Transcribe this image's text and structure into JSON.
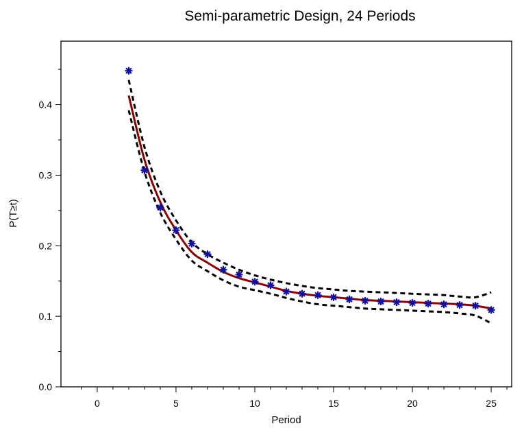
{
  "chart_data": {
    "type": "line",
    "title": "Semi-parametric Design, 24 Periods",
    "xlabel": "Period",
    "ylabel": "P(T≥t)",
    "xlim": [
      -2.3,
      26.3
    ],
    "ylim": [
      0.0,
      0.49
    ],
    "xticks": [
      0,
      5,
      10,
      15,
      20,
      25
    ],
    "xminor": [
      -1,
      1,
      2,
      3,
      4,
      6,
      7,
      8,
      9,
      11,
      12,
      13,
      14,
      16,
      17,
      18,
      19,
      21,
      22,
      23,
      24,
      26
    ],
    "yticks": [
      0.0,
      0.1,
      0.2,
      0.3,
      0.4
    ],
    "yminor": [
      0.05,
      0.15,
      0.25,
      0.35,
      0.45
    ],
    "xtick_labels": [
      "0",
      "5",
      "10",
      "15",
      "20",
      "25"
    ],
    "ytick_labels": [
      "0.0",
      "0.1",
      "0.2",
      "0.3",
      "0.4"
    ],
    "grid": false,
    "series": [
      {
        "role": "observed",
        "x": [
          2,
          3,
          4,
          5,
          6,
          7,
          8,
          9,
          10,
          11,
          12,
          13,
          14,
          15,
          16,
          17,
          18,
          19,
          20,
          21,
          22,
          23,
          24,
          25
        ],
        "y": [
          0.448,
          0.307,
          0.254,
          0.222,
          0.203,
          0.188,
          0.166,
          0.159,
          0.149,
          0.144,
          0.135,
          0.132,
          0.13,
          0.127,
          0.124,
          0.122,
          0.121,
          0.12,
          0.119,
          0.118,
          0.117,
          0.116,
          0.115,
          0.109
        ]
      },
      {
        "role": "fitted",
        "x": [
          2,
          3,
          4,
          5,
          6,
          7,
          8,
          9,
          10,
          11,
          12,
          13,
          14,
          15,
          16,
          17,
          18,
          19,
          20,
          21,
          22,
          23,
          24,
          25
        ],
        "y": [
          0.413,
          0.322,
          0.262,
          0.222,
          0.191,
          0.176,
          0.163,
          0.154,
          0.148,
          0.142,
          0.136,
          0.132,
          0.129,
          0.127,
          0.125,
          0.123,
          0.122,
          0.121,
          0.12,
          0.119,
          0.118,
          0.117,
          0.115,
          0.111
        ]
      },
      {
        "role": "upper-bound",
        "x": [
          2,
          3,
          4,
          5,
          6,
          7,
          8,
          9,
          10,
          11,
          12,
          13,
          14,
          15,
          16,
          17,
          18,
          19,
          20,
          21,
          22,
          23,
          24,
          25
        ],
        "y": [
          0.435,
          0.34,
          0.277,
          0.236,
          0.205,
          0.188,
          0.176,
          0.166,
          0.158,
          0.152,
          0.147,
          0.143,
          0.14,
          0.138,
          0.136,
          0.135,
          0.134,
          0.133,
          0.132,
          0.131,
          0.13,
          0.128,
          0.127,
          0.134
        ]
      },
      {
        "role": "lower-bound",
        "x": [
          2,
          3,
          4,
          5,
          6,
          7,
          8,
          9,
          10,
          11,
          12,
          13,
          14,
          15,
          16,
          17,
          18,
          19,
          20,
          21,
          22,
          23,
          24,
          25
        ],
        "y": [
          0.392,
          0.305,
          0.247,
          0.209,
          0.179,
          0.164,
          0.151,
          0.142,
          0.137,
          0.132,
          0.126,
          0.121,
          0.117,
          0.115,
          0.113,
          0.111,
          0.11,
          0.109,
          0.108,
          0.107,
          0.106,
          0.104,
          0.101,
          0.09
        ]
      }
    ]
  }
}
